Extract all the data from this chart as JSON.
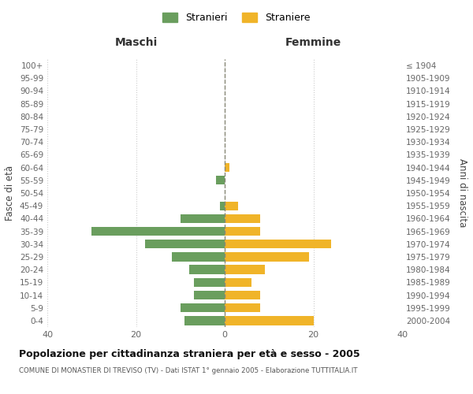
{
  "age_groups": [
    "100+",
    "95-99",
    "90-94",
    "85-89",
    "80-84",
    "75-79",
    "70-74",
    "65-69",
    "60-64",
    "55-59",
    "50-54",
    "45-49",
    "40-44",
    "35-39",
    "30-34",
    "25-29",
    "20-24",
    "15-19",
    "10-14",
    "5-9",
    "0-4"
  ],
  "birth_years": [
    "≤ 1904",
    "1905-1909",
    "1910-1914",
    "1915-1919",
    "1920-1924",
    "1925-1929",
    "1930-1934",
    "1935-1939",
    "1940-1944",
    "1945-1949",
    "1950-1954",
    "1955-1959",
    "1960-1964",
    "1965-1969",
    "1970-1974",
    "1975-1979",
    "1980-1984",
    "1985-1989",
    "1990-1994",
    "1995-1999",
    "2000-2004"
  ],
  "maschi": [
    0,
    0,
    0,
    0,
    0,
    0,
    0,
    0,
    0,
    2,
    0,
    1,
    10,
    30,
    18,
    12,
    8,
    7,
    7,
    10,
    9
  ],
  "femmine": [
    0,
    0,
    0,
    0,
    0,
    0,
    0,
    0,
    1,
    0,
    0,
    3,
    8,
    8,
    24,
    19,
    9,
    6,
    8,
    8,
    20
  ],
  "color_maschi": "#6a9e5e",
  "color_femmine": "#f0b429",
  "title": "Popolazione per cittadinanza straniera per età e sesso - 2005",
  "subtitle": "COMUNE DI MONASTIER DI TREVISO (TV) - Dati ISTAT 1° gennaio 2005 - Elaborazione TUTTITALIA.IT",
  "xlabel_left": "Maschi",
  "xlabel_right": "Femmine",
  "ylabel_left": "Fasce di età",
  "ylabel_right": "Anni di nascita",
  "legend_maschi": "Stranieri",
  "legend_femmine": "Straniere",
  "xlim": 40,
  "background_color": "#ffffff",
  "grid_color": "#cccccc"
}
